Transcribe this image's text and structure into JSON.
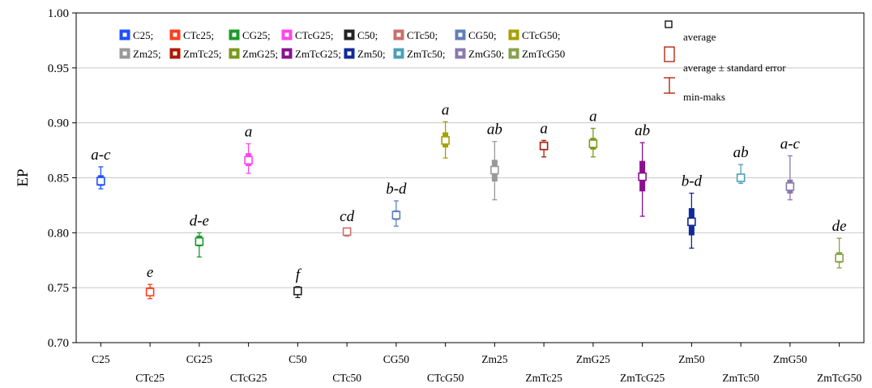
{
  "chart_data": {
    "type": "scatter",
    "ylabel": "EP",
    "ylim": [
      0.7,
      1.0
    ],
    "yticks": [
      0.7,
      0.75,
      0.8,
      0.85,
      0.9,
      0.95,
      1.0
    ],
    "ytick_labels": [
      "0.70",
      "0.75",
      "0.80",
      "0.85",
      "0.90",
      "0.95",
      "1.00"
    ],
    "grid": "horizontal",
    "legend_position": "top",
    "key": {
      "average": "average",
      "average_se": "average ± standard error",
      "min_max": "min-maks"
    },
    "series": [
      {
        "name": "C25",
        "label_text": "C25;",
        "mean": 0.847,
        "se_low": 0.843,
        "se_high": 0.852,
        "min": 0.84,
        "max": 0.86,
        "group": "a-c",
        "color": "#1f4fff"
      },
      {
        "name": "CTc25",
        "label_text": "CTc25;",
        "mean": 0.746,
        "se_low": 0.743,
        "se_high": 0.75,
        "min": 0.74,
        "max": 0.753,
        "group": "e",
        "color": "#ff3d1f"
      },
      {
        "name": "CG25",
        "label_text": "CG25;",
        "mean": 0.792,
        "se_low": 0.788,
        "se_high": 0.797,
        "min": 0.778,
        "max": 0.8,
        "group": "d-e",
        "color": "#1a9a2a"
      },
      {
        "name": "CTcG25",
        "label_text": "CTcG25;",
        "mean": 0.866,
        "se_low": 0.861,
        "se_high": 0.872,
        "min": 0.854,
        "max": 0.881,
        "group": "a",
        "color": "#ff44ee"
      },
      {
        "name": "C50",
        "label_text": "C50;",
        "mean": 0.747,
        "se_low": 0.745,
        "se_high": 0.75,
        "min": 0.741,
        "max": 0.751,
        "group": "f",
        "color": "#222222"
      },
      {
        "name": "CTc50",
        "label_text": "CTc50;",
        "mean": 0.801,
        "se_low": 0.799,
        "se_high": 0.803,
        "min": 0.797,
        "max": 0.804,
        "group": "cd",
        "color": "#c8706a"
      },
      {
        "name": "CG50",
        "label_text": "CG50;",
        "mean": 0.816,
        "se_low": 0.812,
        "se_high": 0.82,
        "min": 0.806,
        "max": 0.829,
        "group": "b-d",
        "color": "#5f80b8"
      },
      {
        "name": "CTcG50",
        "label_text": "CTcG50;",
        "mean": 0.884,
        "se_low": 0.878,
        "se_high": 0.891,
        "min": 0.868,
        "max": 0.901,
        "group": "a",
        "color": "#a8a000"
      },
      {
        "name": "Zm25",
        "label_text": "Zm25;",
        "mean": 0.857,
        "se_low": 0.847,
        "se_high": 0.866,
        "min": 0.83,
        "max": 0.883,
        "group": "ab",
        "color": "#999999"
      },
      {
        "name": "ZmTc25",
        "label_text": "ZmTc25;",
        "mean": 0.879,
        "se_low": 0.876,
        "se_high": 0.882,
        "min": 0.869,
        "max": 0.884,
        "group": "a",
        "color": "#b01800"
      },
      {
        "name": "ZmG25",
        "label_text": "ZmG25;",
        "mean": 0.881,
        "se_low": 0.876,
        "se_high": 0.886,
        "min": 0.869,
        "max": 0.895,
        "group": "a",
        "color": "#7a9a1a"
      },
      {
        "name": "ZmTcG25",
        "label_text": "ZmTcG25;",
        "mean": 0.851,
        "se_low": 0.838,
        "se_high": 0.865,
        "min": 0.815,
        "max": 0.882,
        "group": "ab",
        "color": "#8a1090"
      },
      {
        "name": "Zm50",
        "label_text": "Zm50;",
        "mean": 0.81,
        "se_low": 0.798,
        "se_high": 0.822,
        "min": 0.786,
        "max": 0.836,
        "group": "b-d",
        "color": "#102a9a"
      },
      {
        "name": "ZmTc50",
        "label_text": "ZmTc50;",
        "mean": 0.85,
        "se_low": 0.847,
        "se_high": 0.853,
        "min": 0.845,
        "max": 0.862,
        "group": "ab",
        "color": "#4aa0b8"
      },
      {
        "name": "ZmG50",
        "label_text": "ZmG50;",
        "mean": 0.842,
        "se_low": 0.836,
        "se_high": 0.848,
        "min": 0.83,
        "max": 0.87,
        "group": "a-c",
        "color": "#8a78b0"
      },
      {
        "name": "ZmTcG50",
        "label_text": "ZmTcG50",
        "mean": 0.777,
        "se_low": 0.773,
        "se_high": 0.782,
        "min": 0.768,
        "max": 0.795,
        "group": "de",
        "color": "#8aa04a"
      }
    ]
  }
}
